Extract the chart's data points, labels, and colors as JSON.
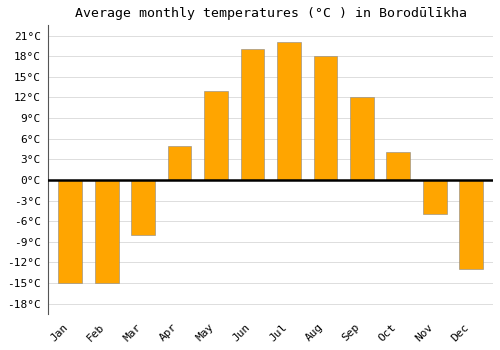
{
  "title": "Average monthly temperatures (°C ) in Borodūlīkha",
  "months": [
    "Jan",
    "Feb",
    "Mar",
    "Apr",
    "May",
    "Jun",
    "Jul",
    "Aug",
    "Sep",
    "Oct",
    "Nov",
    "Dec"
  ],
  "values": [
    -15,
    -15,
    -8,
    5,
    13,
    19,
    20,
    18,
    12,
    4,
    -5,
    -13
  ],
  "bar_color": "#FFA500",
  "bar_edge_color": "#888888",
  "background_color": "#FFFFFF",
  "grid_color": "#DDDDDD",
  "yticks": [
    -18,
    -15,
    -12,
    -9,
    -6,
    -3,
    0,
    3,
    6,
    9,
    12,
    15,
    18,
    21
  ],
  "ytick_labels": [
    "-18°C",
    "-15°C",
    "-12°C",
    "-9°C",
    "-6°C",
    "-3°C",
    "0°C",
    "3°C",
    "6°C",
    "9°C",
    "12°C",
    "15°C",
    "18°C",
    "21°C"
  ],
  "ylim": [
    -19.5,
    22.5
  ],
  "title_fontsize": 9.5,
  "tick_fontsize": 8,
  "bar_width": 0.65
}
